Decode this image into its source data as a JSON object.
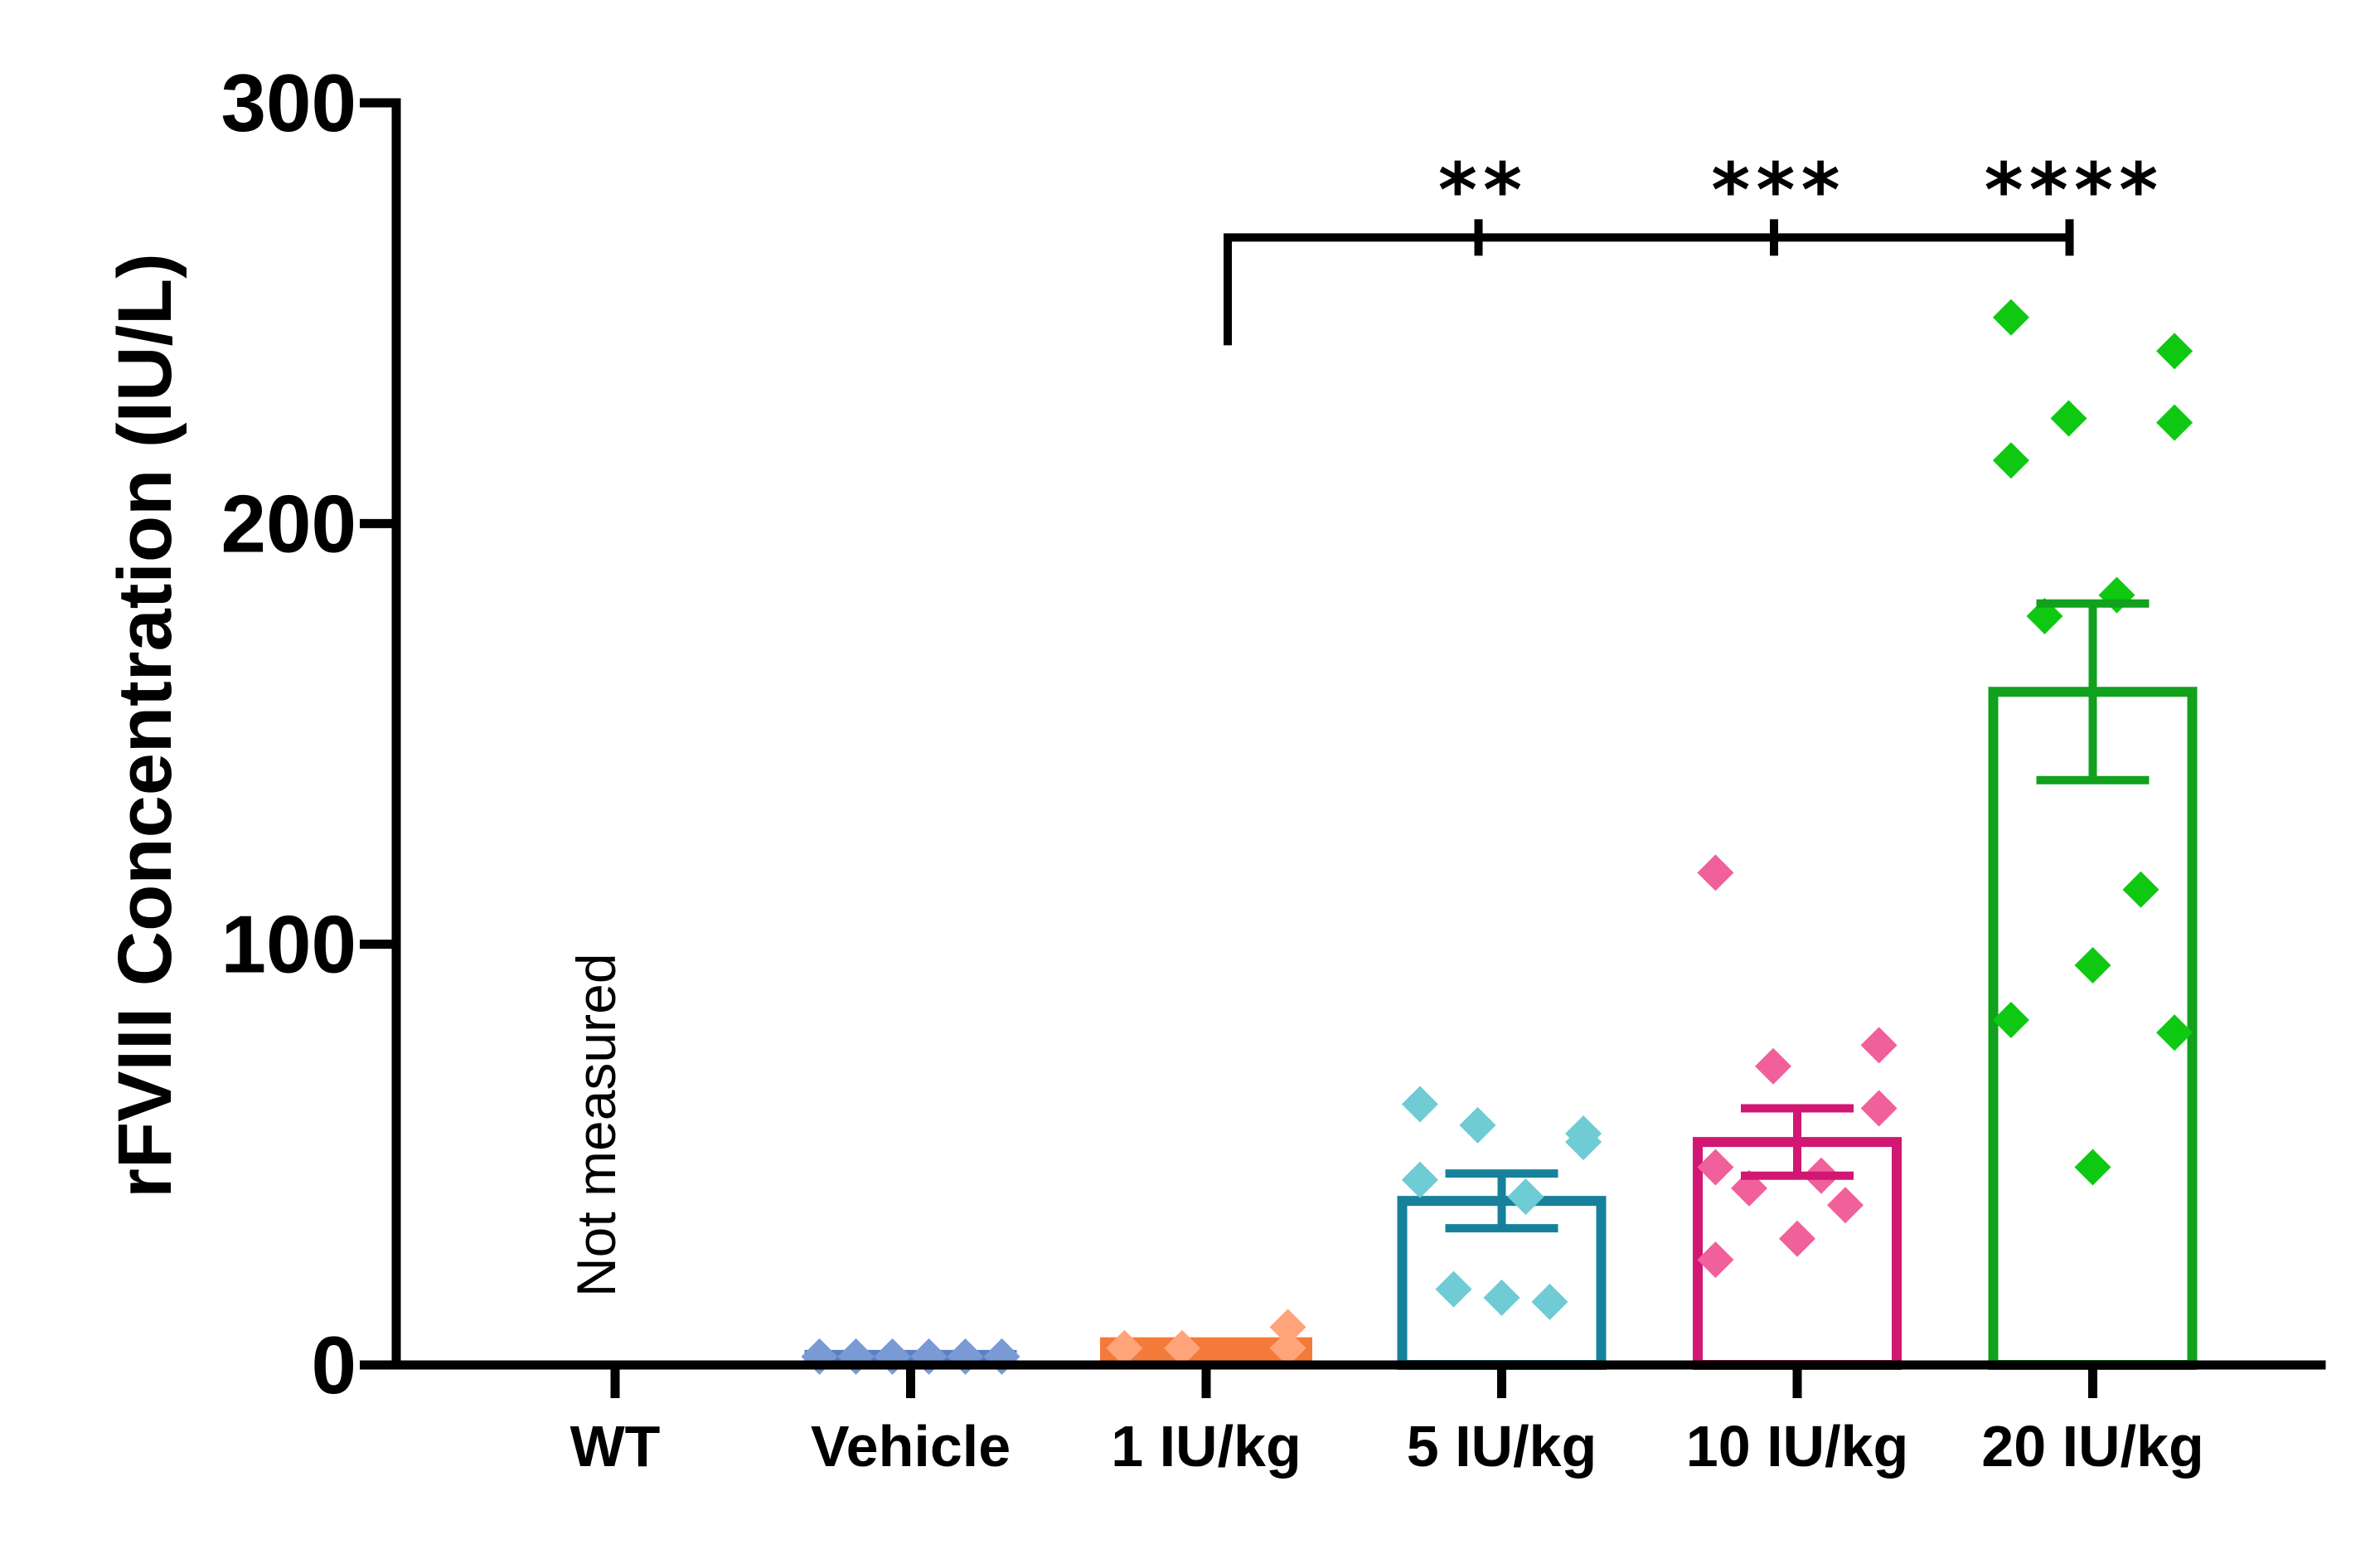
{
  "chart_data": {
    "type": "bar",
    "title": "",
    "xlabel": "",
    "ylabel": "rFVIII Concentration (IU/L)",
    "ylim": [
      0,
      300
    ],
    "yticks": [
      0,
      100,
      200,
      300
    ],
    "ytick_labels": [
      "0",
      "100",
      "200",
      "300"
    ],
    "categories": [
      "WT",
      "Vehicle",
      "1 IU/kg",
      "5 IU/kg",
      "10 IU/kg",
      "20 IU/kg"
    ],
    "groups": [
      {
        "name": "WT",
        "mean": null,
        "sem": null,
        "points": [],
        "color": "#000000",
        "point_color": "#000000",
        "note": "Not measured"
      },
      {
        "name": "Vehicle",
        "mean": 2,
        "sem": 0.3,
        "points": [
          2,
          2,
          2,
          2,
          2,
          2
        ],
        "color": "#5b7fc4",
        "point_color": "#7a9ad6"
      },
      {
        "name": "1 IU/kg",
        "mean": 5,
        "sem": 1.5,
        "points": [
          4,
          9,
          4,
          4
        ],
        "color": "#f47a3a",
        "point_color": "#ffa47a"
      },
      {
        "name": "5 IU/kg",
        "mean": 39,
        "sem": 6.5,
        "points": [
          62,
          53,
          57,
          55,
          44,
          40,
          18,
          15,
          16
        ],
        "color": "#17819b",
        "point_color": "#6fcbd4"
      },
      {
        "name": "10 IU/kg",
        "mean": 53,
        "sem": 8,
        "points": [
          117,
          76,
          71,
          61,
          47,
          45,
          42,
          38,
          30,
          25
        ],
        "color": "#d11773",
        "point_color": "#f0609a"
      },
      {
        "name": "20 IU/kg",
        "mean": 160,
        "sem": 21,
        "points": [
          249,
          241,
          225,
          224,
          215,
          183,
          178,
          113,
          95,
          82,
          79,
          47
        ],
        "color": "#11a11c",
        "point_color": "#0fc812"
      }
    ],
    "significance": {
      "reference": "1 IU/kg",
      "y": 268,
      "comparisons": [
        {
          "target": "5 IU/kg",
          "label": "**"
        },
        {
          "target": "10 IU/kg",
          "label": "***"
        },
        {
          "target": "20 IU/kg",
          "label": "****"
        }
      ]
    }
  }
}
